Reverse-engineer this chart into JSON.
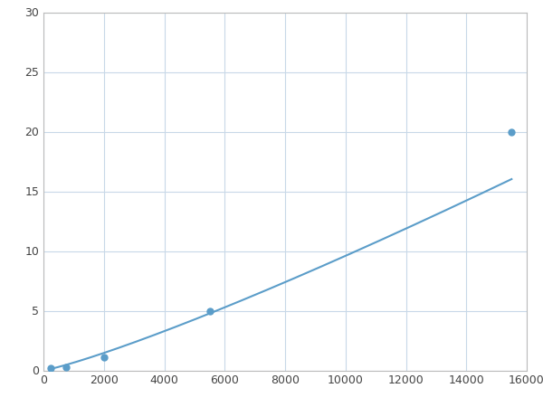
{
  "x": [
    250,
    750,
    2000,
    5500,
    15500
  ],
  "y": [
    0.2,
    0.3,
    1.1,
    5.0,
    20.0
  ],
  "line_color": "#5B9DC9",
  "marker_color": "#5B9DC9",
  "marker_size": 5,
  "line_width": 1.5,
  "xlim": [
    0,
    16000
  ],
  "ylim": [
    0,
    30
  ],
  "xticks": [
    0,
    2000,
    4000,
    6000,
    8000,
    10000,
    12000,
    14000,
    16000
  ],
  "yticks": [
    0,
    5,
    10,
    15,
    20,
    25,
    30
  ],
  "grid_color": "#C8D8E8",
  "background_color": "#ffffff",
  "spine_color": "#bbbbbb",
  "fig_width": 6.0,
  "fig_height": 4.5,
  "dpi": 100
}
